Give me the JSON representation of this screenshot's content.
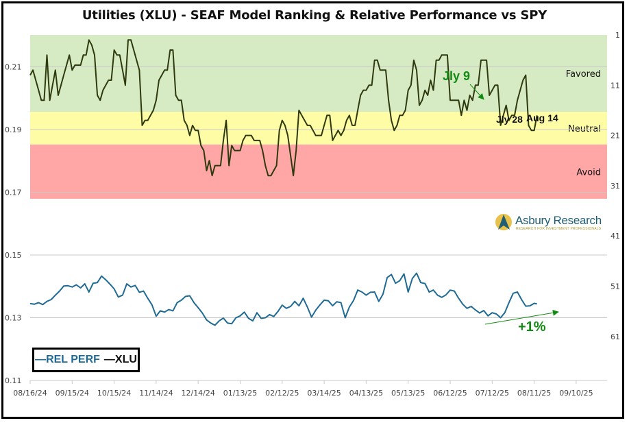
{
  "chart_data": {
    "type": "line",
    "title": "Utilities (XLU) - SEAF Model Ranking & Relative Performance vs SPY",
    "xlabel": "",
    "ylabel": "",
    "x_tick_labels": [
      "08/16/24",
      "09/15/24",
      "10/15/24",
      "11/14/24",
      "12/14/24",
      "01/13/25",
      "02/12/25",
      "03/14/25",
      "04/13/25",
      "05/13/25",
      "06/12/25",
      "07/12/25",
      "08/11/25",
      "09/10/25"
    ],
    "y_left": {
      "ticks": [
        "0.11",
        "0.13",
        "0.15",
        "0.17",
        "0.19",
        "0.21"
      ],
      "range": [
        0.11,
        0.2195
      ]
    },
    "y_right": {
      "ticks": [
        "1",
        "11",
        "21",
        "31",
        "41",
        "51",
        "61"
      ],
      "range": [
        1,
        71
      ],
      "reversed": true
    },
    "grid": true,
    "legend": {
      "position": "bottom-left",
      "entries": [
        "REL PERF",
        "XLU"
      ]
    },
    "bands": [
      {
        "label": "Favored",
        "from_rank": 1,
        "to_rank": 16.3,
        "color": "#d6ebc4"
      },
      {
        "label": "Neutral",
        "from_rank": 16.3,
        "to_rank": 22.8,
        "color": "#fffca6"
      },
      {
        "label": "Avoid",
        "from_rank": 22.8,
        "to_rank": 33.6,
        "color": "#ffa6a6"
      }
    ],
    "series": [
      {
        "name": "XLU",
        "axis": "right",
        "color": "#2e3a0e",
        "x_days": [
          0,
          2,
          4,
          6,
          8,
          10,
          12,
          14,
          16,
          18,
          20,
          22,
          24,
          26,
          28,
          30,
          32,
          34,
          36,
          38,
          40,
          42,
          44,
          46,
          48,
          50,
          52,
          54,
          56,
          58,
          60,
          62,
          64,
          66,
          68,
          70,
          72,
          74,
          76,
          78,
          80,
          82,
          84,
          86,
          88,
          90,
          92,
          94,
          96,
          98,
          100,
          102,
          104,
          106,
          108,
          110,
          112,
          114,
          116,
          118,
          120,
          122,
          124,
          126,
          128,
          130,
          132,
          134,
          136,
          138,
          140,
          142,
          144,
          146,
          148,
          150,
          152,
          154,
          156,
          158,
          160,
          162,
          164,
          166,
          168,
          170,
          172,
          174,
          176,
          178,
          180,
          182,
          184,
          186,
          188,
          190,
          192,
          194,
          196,
          198,
          200,
          202,
          204,
          206,
          208,
          210,
          212,
          214,
          216,
          218,
          220,
          222,
          224,
          226,
          228,
          230,
          232,
          234,
          236,
          238,
          240,
          242,
          244,
          246,
          248,
          250,
          252,
          254,
          256,
          258,
          260,
          262,
          264,
          266,
          268,
          270,
          272,
          274,
          276,
          278,
          280,
          282,
          284,
          286,
          288,
          290,
          292,
          294,
          296,
          298,
          300,
          302,
          304,
          306,
          308,
          310,
          312,
          314,
          316,
          318,
          320,
          322,
          324,
          326,
          328,
          330,
          332,
          334,
          336,
          338,
          340,
          342,
          344,
          346,
          348,
          350,
          352,
          354,
          356,
          358,
          360,
          362
        ],
        "values": [
          9,
          8,
          10,
          12,
          14,
          14,
          5,
          14,
          11,
          8,
          13,
          11,
          9,
          7,
          5,
          8,
          7,
          7,
          7,
          5,
          5,
          2,
          3,
          5,
          13,
          14,
          12,
          11,
          10,
          10,
          4,
          5,
          5,
          8,
          11,
          2,
          2,
          4,
          6,
          8,
          19,
          18,
          18,
          17,
          16,
          14,
          10,
          9,
          8,
          8,
          4,
          4,
          13,
          14,
          14,
          18,
          19,
          21,
          19,
          20,
          20,
          23,
          24,
          28,
          26,
          29,
          27,
          27,
          27,
          22,
          18,
          27,
          23,
          24,
          24,
          24,
          22,
          21,
          21,
          21,
          22,
          22,
          22,
          24,
          27,
          29,
          29,
          28,
          27,
          20,
          18,
          19,
          21,
          25,
          29,
          24,
          16,
          17,
          18,
          19,
          19,
          20,
          21,
          21,
          21,
          19,
          17,
          17,
          22,
          21,
          20,
          21,
          20,
          18,
          17,
          19,
          19,
          16,
          13,
          12,
          12,
          11,
          11,
          6,
          6,
          8,
          8,
          8,
          14,
          18,
          20,
          19,
          17,
          17,
          16,
          12,
          11,
          6,
          8,
          15,
          14,
          12,
          13,
          10,
          12,
          6,
          6,
          5,
          5,
          5,
          14,
          14,
          14,
          14,
          17,
          14,
          16,
          13,
          14,
          11,
          11,
          6,
          6,
          6,
          13,
          12,
          11,
          11,
          19,
          17,
          15,
          18,
          17,
          17,
          14,
          12,
          10,
          9,
          19,
          20,
          20,
          17,
          17
        ]
      },
      {
        "name": "REL PERF",
        "axis": "left",
        "color": "#1f6a94",
        "x_days": [
          0,
          3,
          6,
          9,
          12,
          15,
          18,
          21,
          24,
          27,
          30,
          33,
          36,
          39,
          42,
          45,
          48,
          51,
          54,
          57,
          60,
          63,
          66,
          69,
          72,
          75,
          78,
          81,
          84,
          87,
          90,
          93,
          96,
          99,
          102,
          105,
          108,
          111,
          114,
          117,
          120,
          123,
          126,
          129,
          132,
          135,
          138,
          141,
          144,
          147,
          150,
          153,
          156,
          159,
          162,
          165,
          168,
          171,
          174,
          177,
          180,
          183,
          186,
          189,
          192,
          195,
          198,
          201,
          204,
          207,
          210,
          213,
          216,
          219,
          222,
          225,
          228,
          231,
          234,
          237,
          240,
          243,
          246,
          249,
          252,
          255,
          258,
          261,
          264,
          267,
          270,
          273,
          276,
          279,
          282,
          285,
          288,
          291,
          294,
          297,
          300,
          303,
          306,
          309,
          312,
          315,
          318,
          321,
          324,
          327,
          330,
          333,
          336,
          339,
          342,
          345,
          348,
          351,
          354,
          357,
          360,
          362
        ],
        "values": [
          0.1345,
          0.1343,
          0.1348,
          0.1342,
          0.1352,
          0.1358,
          0.1372,
          0.1385,
          0.1401,
          0.1402,
          0.1398,
          0.1405,
          0.1395,
          0.1408,
          0.1382,
          0.141,
          0.1412,
          0.1433,
          0.1421,
          0.1407,
          0.1392,
          0.1366,
          0.1372,
          0.1408,
          0.1398,
          0.1403,
          0.1381,
          0.1385,
          0.1362,
          0.1341,
          0.1305,
          0.1322,
          0.1318,
          0.1326,
          0.1322,
          0.1348,
          0.1356,
          0.1368,
          0.137,
          0.1348,
          0.1332,
          0.1315,
          0.1293,
          0.1283,
          0.1276,
          0.129,
          0.1299,
          0.1283,
          0.1281,
          0.13,
          0.1306,
          0.1318,
          0.1298,
          0.129,
          0.1316,
          0.1298,
          0.13,
          0.131,
          0.1304,
          0.132,
          0.134,
          0.133,
          0.1336,
          0.1352,
          0.1338,
          0.1362,
          0.1334,
          0.1302,
          0.1324,
          0.1341,
          0.1356,
          0.1354,
          0.1338,
          0.1351,
          0.1348,
          0.13,
          0.1334,
          0.1355,
          0.1388,
          0.1382,
          0.1372,
          0.1381,
          0.1382,
          0.1352,
          0.1375,
          0.1428,
          0.1438,
          0.141,
          0.1418,
          0.144,
          0.1382,
          0.1425,
          0.1442,
          0.1412,
          0.1409,
          0.1382,
          0.1388,
          0.1372,
          0.1365,
          0.1373,
          0.1388,
          0.1385,
          0.1362,
          0.1343,
          0.133,
          0.1336,
          0.1325,
          0.1315,
          0.1323,
          0.1306,
          0.1316,
          0.1312,
          0.13,
          0.1316,
          0.1348,
          0.1378,
          0.1382,
          0.1358,
          0.1337,
          0.1338,
          0.1346,
          0.1344
        ]
      }
    ],
    "annotations": [
      {
        "text": "Jly 9",
        "color": "#138a13"
      },
      {
        "text": "Jly 28",
        "color": "#111111"
      },
      {
        "text": "Aug 14",
        "color": "#111111"
      },
      {
        "text": "+1%",
        "color": "#138a13"
      }
    ]
  },
  "logo": {
    "name": "Asbury Research",
    "tagline": "RESEARCH FOR INVESTMENT PROFESSIONALS"
  }
}
